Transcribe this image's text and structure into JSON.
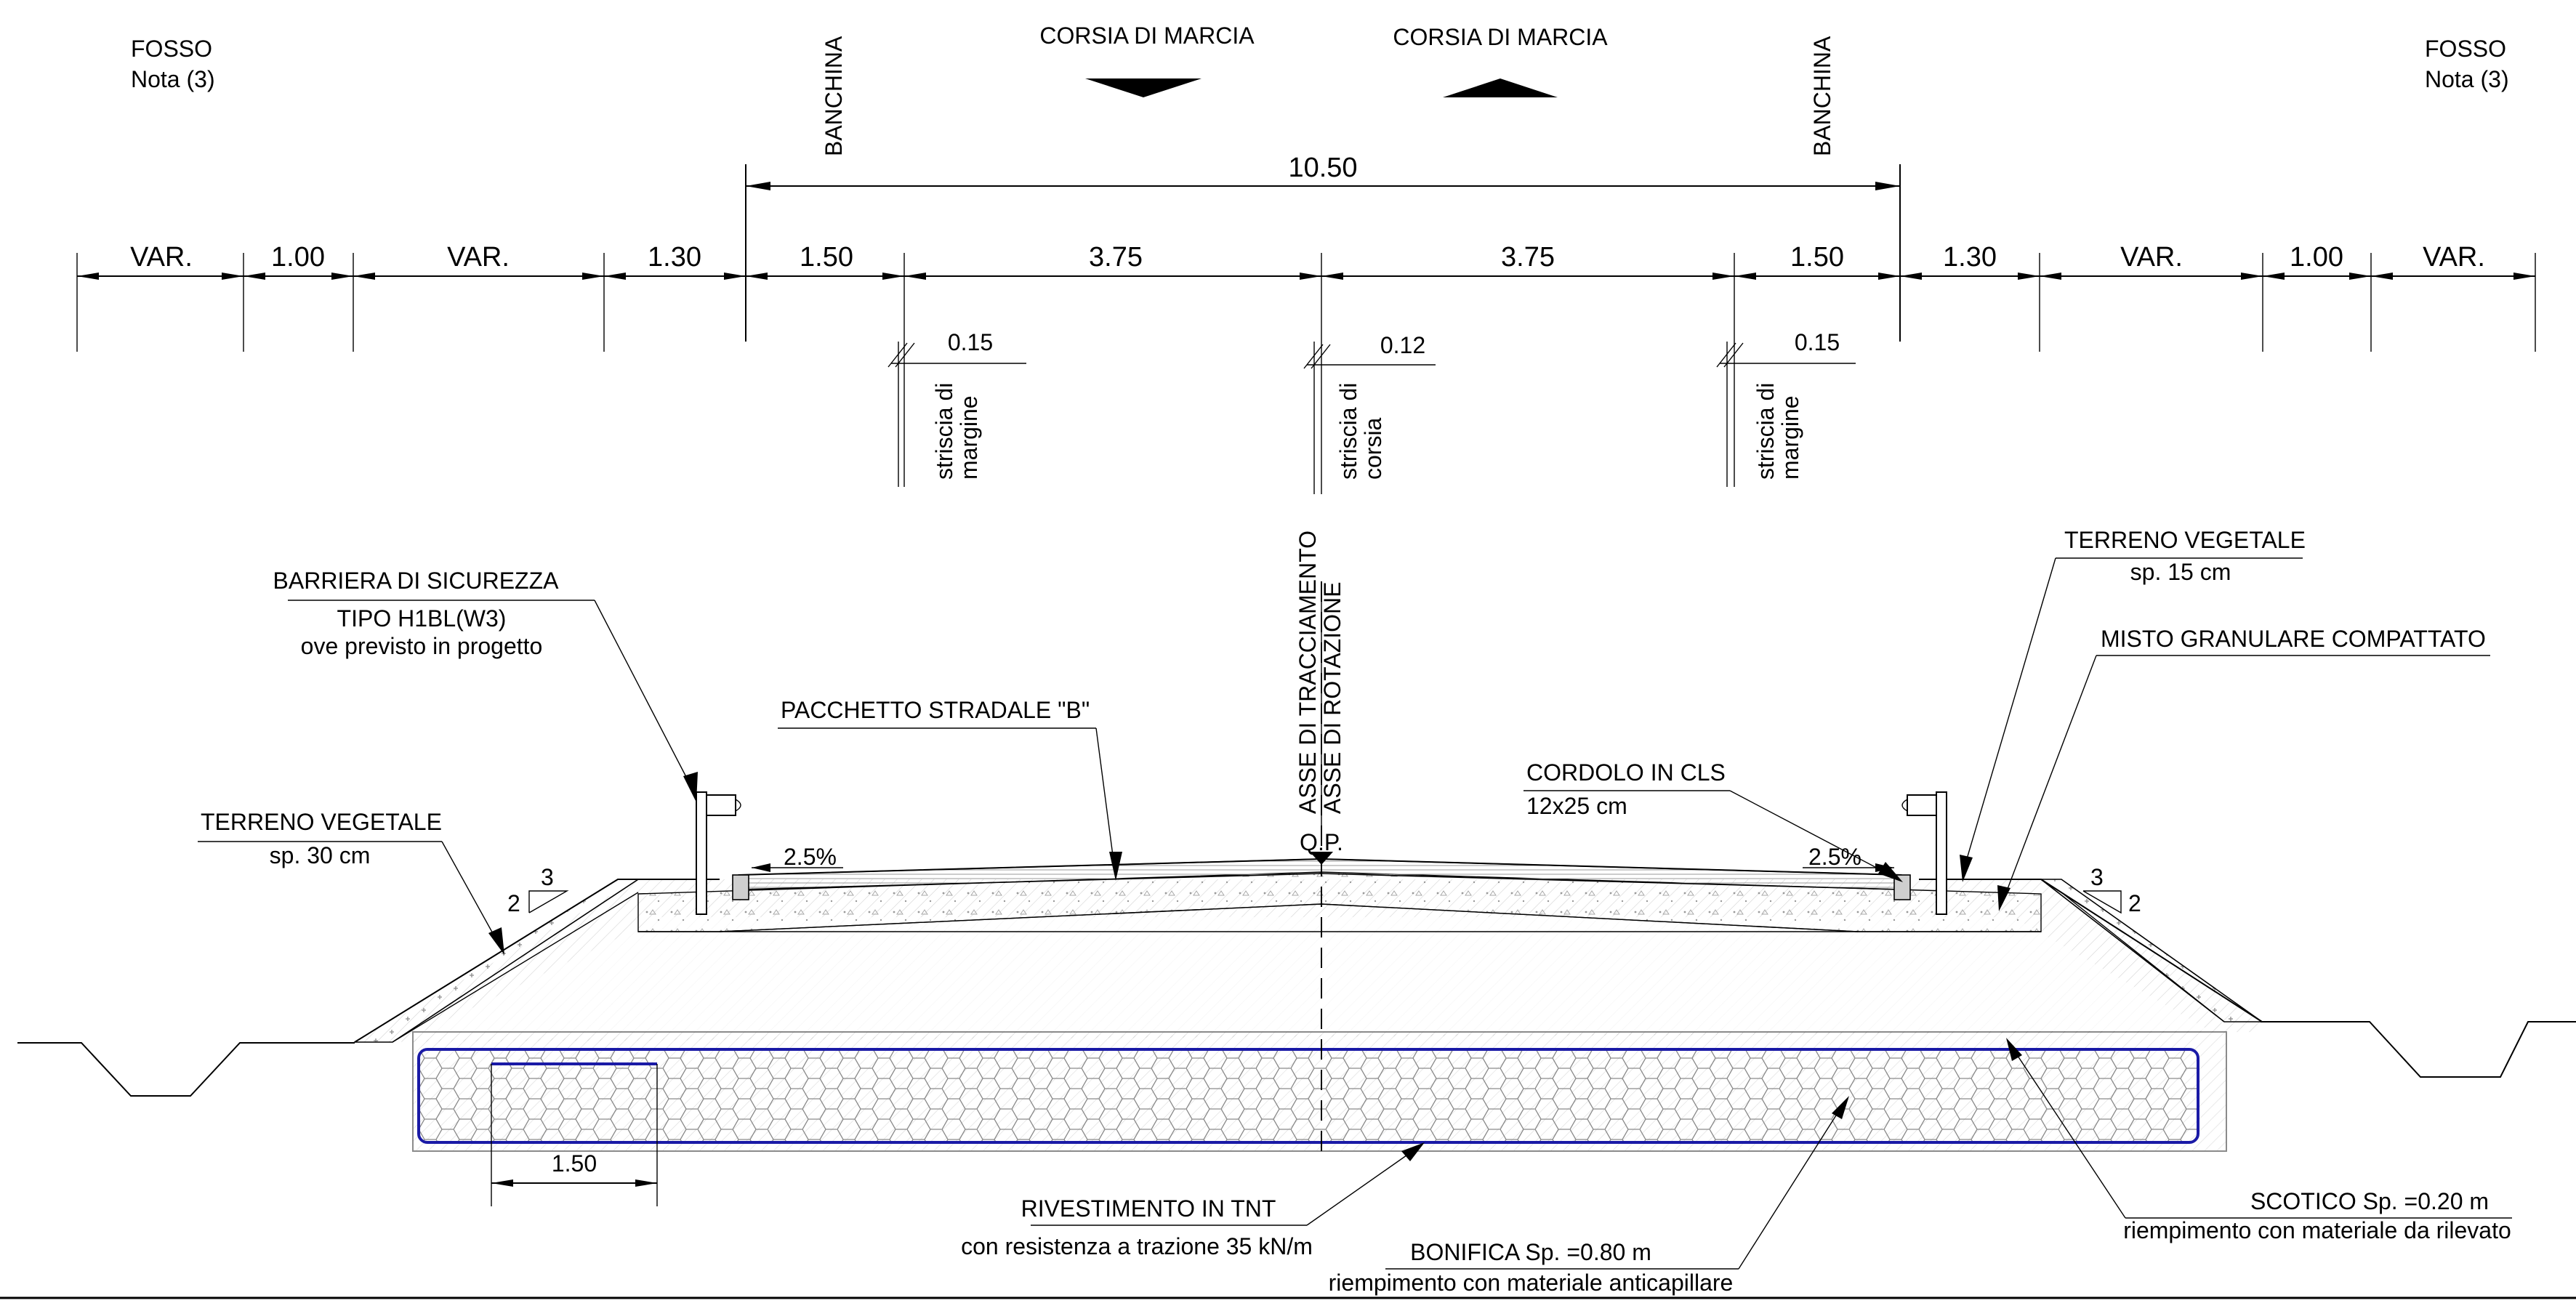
{
  "header": {
    "fosso_left": "FOSSO",
    "nota_left": "Nota (3)",
    "fosso_right": "FOSSO",
    "nota_right": "Nota (3)",
    "banchina_left": "BANCHINA",
    "banchina_right": "BANCHINA",
    "corsia_left": "CORSIA DI MARCIA",
    "corsia_right": "CORSIA DI MARCIA"
  },
  "dimensions": {
    "total": "10.50",
    "segments": [
      "VAR.",
      "1.00",
      "VAR.",
      "1.30",
      "1.50",
      "3.75",
      "3.75",
      "1.50",
      "1.30",
      "VAR.",
      "1.00",
      "VAR."
    ]
  },
  "stripes": [
    {
      "width": "0.15",
      "line1": "striscia di",
      "line2": "margine"
    },
    {
      "width": "0.12",
      "line1": "striscia di",
      "line2": "corsia"
    },
    {
      "width": "0.15",
      "line1": "striscia di",
      "line2": "margine"
    }
  ],
  "labels": {
    "barriera_title": "BARRIERA DI SICUREZZA",
    "barriera_tipo": "TIPO H1BL(W3)",
    "barriera_note": "ove previsto in progetto",
    "pacchetto": "PACCHETTO STRADALE \"B\"",
    "asse_tracciamento": "ASSE DI TRACCIAMENTO",
    "asse_rotazione": "ASSE DI ROTAZIONE",
    "qp": "Q.P.",
    "terreno_left_title": "TERRENO VEGETALE",
    "terreno_left_sp": "sp. 30 cm",
    "terreno_right_title": "TERRENO VEGETALE",
    "terreno_right_sp": "sp. 15 cm",
    "misto": "MISTO GRANULARE COMPATTATO",
    "cordolo_title": "CORDOLO IN CLS",
    "cordolo_size": "12x25 cm",
    "slope_left": "2.5%",
    "slope_right": "2.5%",
    "slope_v": "2",
    "slope_h": "3",
    "dim_150": "1.50",
    "rivestimento_title": "RIVESTIMENTO IN TNT",
    "rivestimento_note": "con resistenza a trazione 35 kN/m",
    "bonifica_title": "BONIFICA Sp. =0.80 m",
    "bonifica_note": "riempimento con materiale anticapillare",
    "scotico_title": "SCOTICO Sp. =0.20 m",
    "scotico_note": "riempimento con materiale da rilevato"
  },
  "colors": {
    "tnt_outline": "#1a1aa6",
    "line": "#000000"
  }
}
